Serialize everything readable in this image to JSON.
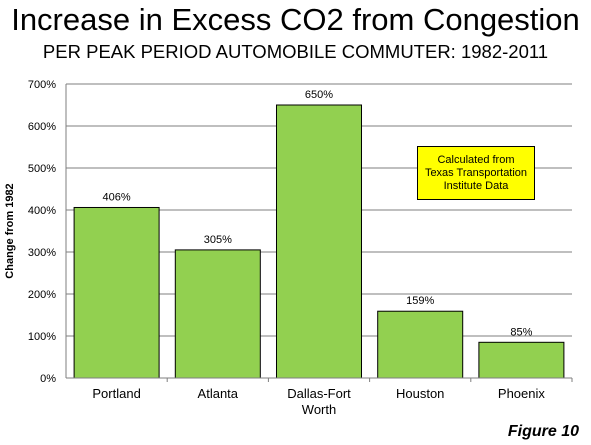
{
  "title": "Increase in Excess CO2 from Congestion",
  "subtitle": "PER PEAK PERIOD AUTOMOBILE COMMUTER: 1982-2011",
  "figure_label": "Figure 10",
  "note": {
    "line1": "Calculated from",
    "line2": "Texas Transportation",
    "line3": "Institute Data"
  },
  "colors": {
    "bar": "#92d050",
    "bar_stroke": "#000000",
    "grid": "#7f7f7f",
    "note_bg": "#ffff00"
  },
  "chart_data": {
    "type": "bar",
    "title": "Increase in Excess CO2 from Congestion",
    "subtitle": "PER PEAK PERIOD AUTOMOBILE COMMUTER: 1982-2011",
    "xlabel": "",
    "ylabel": "Change from 1982",
    "ylim": [
      0,
      700
    ],
    "yticks": [
      0,
      100,
      200,
      300,
      400,
      500,
      600,
      700
    ],
    "ytick_labels": [
      "0%",
      "100%",
      "200%",
      "300%",
      "400%",
      "500%",
      "600%",
      "700%"
    ],
    "grid": true,
    "categories": [
      [
        "Portland"
      ],
      [
        "Atlanta"
      ],
      [
        "Dallas-Fort",
        "Worth"
      ],
      [
        "Houston"
      ],
      [
        "Phoenix"
      ]
    ],
    "values": [
      406,
      305,
      650,
      159,
      85
    ],
    "data_labels": [
      "406%",
      "305%",
      "650%",
      "159%",
      "85%"
    ]
  }
}
